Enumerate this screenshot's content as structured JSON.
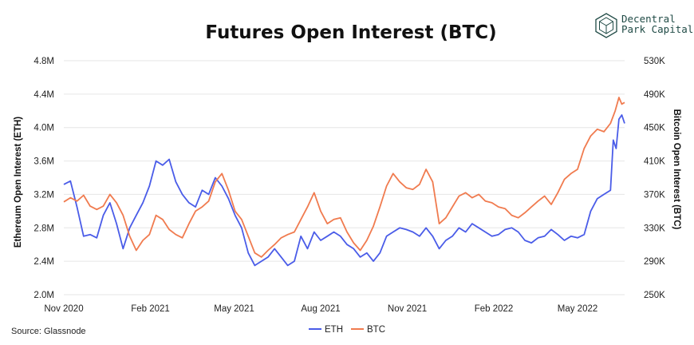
{
  "logo": {
    "line1": "Decentral",
    "line2": "Park Capital",
    "color": "#1f4a45"
  },
  "source": "Source: Glassnode",
  "chart_data": {
    "type": "line",
    "title": "Futures Open Interest (BTC)",
    "y_left_label": "Ethereum Open Interest (ETH)",
    "y_right_label": "Bitcoin Open Interest (BTC)",
    "y_left_ticks": [
      "2.0M",
      "2.4M",
      "2.8M",
      "3.2M",
      "3.6M",
      "4.0M",
      "4.4M",
      "4.8M"
    ],
    "y_right_ticks": [
      "250K",
      "290K",
      "330K",
      "370K",
      "410K",
      "450K",
      "490K",
      "530K"
    ],
    "y_left_range": [
      2000000,
      4800000
    ],
    "y_right_range": [
      250000,
      530000
    ],
    "x_ticks": [
      "Nov 2020",
      "Feb 2021",
      "May 2021",
      "Aug 2021",
      "Nov 2021",
      "Feb 2022",
      "May 2022"
    ],
    "x_range": [
      "2020-11-01",
      "2022-06-20"
    ],
    "grid": "horizontal",
    "legend_position": "bottom-center",
    "series": [
      {
        "name": "ETH",
        "axis": "left",
        "color": "#4a5ce8",
        "points": [
          [
            "2020-11-01",
            3320000.0
          ],
          [
            "2020-11-08",
            3360000.0
          ],
          [
            "2020-11-15",
            3050000.0
          ],
          [
            "2020-11-22",
            2700000.0
          ],
          [
            "2020-11-29",
            2720000.0
          ],
          [
            "2020-12-06",
            2680000.0
          ],
          [
            "2020-12-13",
            2950000.0
          ],
          [
            "2020-12-20",
            3100000.0
          ],
          [
            "2020-12-27",
            2850000.0
          ],
          [
            "2021-01-03",
            2550000.0
          ],
          [
            "2021-01-10",
            2800000.0
          ],
          [
            "2021-01-17",
            2950000.0
          ],
          [
            "2021-01-24",
            3100000.0
          ],
          [
            "2021-01-31",
            3300000.0
          ],
          [
            "2021-02-07",
            3600000.0
          ],
          [
            "2021-02-14",
            3550000.0
          ],
          [
            "2021-02-21",
            3620000.0
          ],
          [
            "2021-02-28",
            3350000.0
          ],
          [
            "2021-03-07",
            3200000.0
          ],
          [
            "2021-03-14",
            3100000.0
          ],
          [
            "2021-03-21",
            3050000.0
          ],
          [
            "2021-03-28",
            3250000.0
          ],
          [
            "2021-04-04",
            3200000.0
          ],
          [
            "2021-04-11",
            3400000.0
          ],
          [
            "2021-04-18",
            3300000.0
          ],
          [
            "2021-04-25",
            3150000.0
          ],
          [
            "2021-05-02",
            2950000.0
          ],
          [
            "2021-05-09",
            2800000.0
          ],
          [
            "2021-05-16",
            2500000.0
          ],
          [
            "2021-05-23",
            2350000.0
          ],
          [
            "2021-05-30",
            2400000.0
          ],
          [
            "2021-06-06",
            2450000.0
          ],
          [
            "2021-06-13",
            2550000.0
          ],
          [
            "2021-06-20",
            2450000.0
          ],
          [
            "2021-06-27",
            2350000.0
          ],
          [
            "2021-07-04",
            2400000.0
          ],
          [
            "2021-07-11",
            2700000.0
          ],
          [
            "2021-07-18",
            2550000.0
          ],
          [
            "2021-07-25",
            2750000.0
          ],
          [
            "2021-08-01",
            2650000.0
          ],
          [
            "2021-08-08",
            2700000.0
          ],
          [
            "2021-08-15",
            2750000.0
          ],
          [
            "2021-08-22",
            2700000.0
          ],
          [
            "2021-08-29",
            2600000.0
          ],
          [
            "2021-09-05",
            2550000.0
          ],
          [
            "2021-09-12",
            2450000.0
          ],
          [
            "2021-09-19",
            2500000.0
          ],
          [
            "2021-09-26",
            2400000.0
          ],
          [
            "2021-10-03",
            2500000.0
          ],
          [
            "2021-10-10",
            2700000.0
          ],
          [
            "2021-10-17",
            2750000.0
          ],
          [
            "2021-10-24",
            2800000.0
          ],
          [
            "2021-10-31",
            2780000.0
          ],
          [
            "2021-11-07",
            2750000.0
          ],
          [
            "2021-11-14",
            2700000.0
          ],
          [
            "2021-11-21",
            2800000.0
          ],
          [
            "2021-11-28",
            2700000.0
          ],
          [
            "2021-12-05",
            2550000.0
          ],
          [
            "2021-12-12",
            2650000.0
          ],
          [
            "2021-12-19",
            2700000.0
          ],
          [
            "2021-12-26",
            2800000.0
          ],
          [
            "2022-01-02",
            2750000.0
          ],
          [
            "2022-01-09",
            2850000.0
          ],
          [
            "2022-01-16",
            2800000.0
          ],
          [
            "2022-01-23",
            2750000.0
          ],
          [
            "2022-01-30",
            2700000.0
          ],
          [
            "2022-02-06",
            2720000.0
          ],
          [
            "2022-02-13",
            2780000.0
          ],
          [
            "2022-02-20",
            2800000.0
          ],
          [
            "2022-02-27",
            2750000.0
          ],
          [
            "2022-03-06",
            2650000.0
          ],
          [
            "2022-03-13",
            2620000.0
          ],
          [
            "2022-03-20",
            2680000.0
          ],
          [
            "2022-03-27",
            2700000.0
          ],
          [
            "2022-04-03",
            2780000.0
          ],
          [
            "2022-04-10",
            2720000.0
          ],
          [
            "2022-04-17",
            2650000.0
          ],
          [
            "2022-04-24",
            2700000.0
          ],
          [
            "2022-05-01",
            2680000.0
          ],
          [
            "2022-05-08",
            2720000.0
          ],
          [
            "2022-05-15",
            3000000.0
          ],
          [
            "2022-05-22",
            3150000.0
          ],
          [
            "2022-05-29",
            3200000.0
          ],
          [
            "2022-06-05",
            3250000.0
          ],
          [
            "2022-06-08",
            3850000.0
          ],
          [
            "2022-06-11",
            3750000.0
          ],
          [
            "2022-06-14",
            4100000.0
          ],
          [
            "2022-06-17",
            4150000.0
          ],
          [
            "2022-06-20",
            4050000.0
          ]
        ]
      },
      {
        "name": "BTC",
        "axis": "right",
        "color": "#f07b4f",
        "points": [
          [
            "2020-11-01",
            361000
          ],
          [
            "2020-11-08",
            366000
          ],
          [
            "2020-11-15",
            362000
          ],
          [
            "2020-11-22",
            369000
          ],
          [
            "2020-11-29",
            356000
          ],
          [
            "2020-12-06",
            352000
          ],
          [
            "2020-12-13",
            356000
          ],
          [
            "2020-12-20",
            370000
          ],
          [
            "2020-12-27",
            360000
          ],
          [
            "2021-01-03",
            345000
          ],
          [
            "2021-01-10",
            320000
          ],
          [
            "2021-01-17",
            303000
          ],
          [
            "2021-01-24",
            315000
          ],
          [
            "2021-01-31",
            322000
          ],
          [
            "2021-02-07",
            345000
          ],
          [
            "2021-02-14",
            340000
          ],
          [
            "2021-02-21",
            328000
          ],
          [
            "2021-02-28",
            322000
          ],
          [
            "2021-03-07",
            318000
          ],
          [
            "2021-03-14",
            335000
          ],
          [
            "2021-03-21",
            350000
          ],
          [
            "2021-03-28",
            355000
          ],
          [
            "2021-04-04",
            362000
          ],
          [
            "2021-04-11",
            385000
          ],
          [
            "2021-04-18",
            395000
          ],
          [
            "2021-04-25",
            375000
          ],
          [
            "2021-05-02",
            350000
          ],
          [
            "2021-05-09",
            340000
          ],
          [
            "2021-05-16",
            320000
          ],
          [
            "2021-05-23",
            300000
          ],
          [
            "2021-05-30",
            295000
          ],
          [
            "2021-06-06",
            303000
          ],
          [
            "2021-06-13",
            310000
          ],
          [
            "2021-06-20",
            318000
          ],
          [
            "2021-06-27",
            322000
          ],
          [
            "2021-07-04",
            325000
          ],
          [
            "2021-07-11",
            340000
          ],
          [
            "2021-07-18",
            355000
          ],
          [
            "2021-07-25",
            372000
          ],
          [
            "2021-08-01",
            350000
          ],
          [
            "2021-08-08",
            335000
          ],
          [
            "2021-08-15",
            340000
          ],
          [
            "2021-08-22",
            342000
          ],
          [
            "2021-08-29",
            325000
          ],
          [
            "2021-09-05",
            312000
          ],
          [
            "2021-09-12",
            303000
          ],
          [
            "2021-09-19",
            315000
          ],
          [
            "2021-09-26",
            332000
          ],
          [
            "2021-10-03",
            355000
          ],
          [
            "2021-10-10",
            380000
          ],
          [
            "2021-10-17",
            395000
          ],
          [
            "2021-10-24",
            385000
          ],
          [
            "2021-10-31",
            378000
          ],
          [
            "2021-11-07",
            376000
          ],
          [
            "2021-11-14",
            382000
          ],
          [
            "2021-11-21",
            400000
          ],
          [
            "2021-11-28",
            385000
          ],
          [
            "2021-12-05",
            335000
          ],
          [
            "2021-12-12",
            342000
          ],
          [
            "2021-12-19",
            355000
          ],
          [
            "2021-12-26",
            368000
          ],
          [
            "2022-01-02",
            372000
          ],
          [
            "2022-01-09",
            366000
          ],
          [
            "2022-01-16",
            370000
          ],
          [
            "2022-01-23",
            362000
          ],
          [
            "2022-01-30",
            360000
          ],
          [
            "2022-02-06",
            355000
          ],
          [
            "2022-02-13",
            353000
          ],
          [
            "2022-02-20",
            345000
          ],
          [
            "2022-02-27",
            342000
          ],
          [
            "2022-03-06",
            348000
          ],
          [
            "2022-03-13",
            355000
          ],
          [
            "2022-03-20",
            362000
          ],
          [
            "2022-03-27",
            368000
          ],
          [
            "2022-04-03",
            358000
          ],
          [
            "2022-04-10",
            372000
          ],
          [
            "2022-04-17",
            388000
          ],
          [
            "2022-04-24",
            395000
          ],
          [
            "2022-05-01",
            400000
          ],
          [
            "2022-05-08",
            425000
          ],
          [
            "2022-05-15",
            440000
          ],
          [
            "2022-05-22",
            448000
          ],
          [
            "2022-05-29",
            445000
          ],
          [
            "2022-06-05",
            455000
          ],
          [
            "2022-06-10",
            470000
          ],
          [
            "2022-06-14",
            486000
          ],
          [
            "2022-06-17",
            478000
          ],
          [
            "2022-06-20",
            480000
          ]
        ]
      }
    ]
  }
}
